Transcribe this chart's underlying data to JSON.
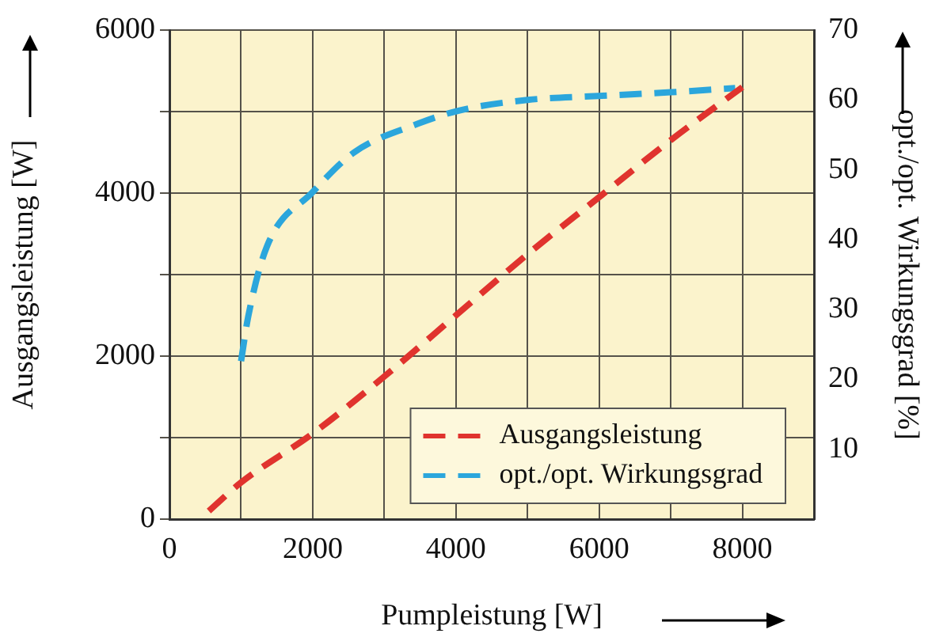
{
  "chart_data": {
    "type": "line",
    "xlabel": "Pumpleistung [W]",
    "ylabel": "Ausgangsleistung [W]",
    "y2label": "opt./opt. Wirkungsgrad [%]",
    "xlim": [
      0,
      9000
    ],
    "xticks": [
      0,
      {
        "value": 1000,
        "label": null
      },
      2000,
      {
        "value": 3000,
        "label": null
      },
      4000,
      {
        "value": 5000,
        "label": null
      },
      6000,
      {
        "value": 7000,
        "label": null
      },
      8000,
      {
        "value": 9000,
        "label": null
      }
    ],
    "ylim": [
      0,
      6000
    ],
    "yticks": [
      0,
      {
        "value": 1000,
        "label": null
      },
      2000,
      {
        "value": 3000,
        "label": null
      },
      4000,
      {
        "value": 5000,
        "label": null
      },
      6000
    ],
    "y2lim": [
      0,
      70
    ],
    "y2ticks": [
      10,
      20,
      30,
      40,
      50,
      60,
      70
    ],
    "grid": true,
    "legend": "bottom right",
    "line_style": "dashed",
    "marker": "none",
    "series": [
      {
        "name": "Ausgangsleistung",
        "color": "#e0332e",
        "x": [
          550,
          1000,
          2000,
          3000,
          4000,
          5000,
          6000,
          7000,
          8000
        ],
        "values": [
          100,
          450,
          1050,
          1750,
          2500,
          3250,
          3950,
          4650,
          5300
        ]
      },
      {
        "name": "opt./opt. Wirkungsgrad",
        "color": "#2ba6dc",
        "axis": "y2",
        "x": [
          1000,
          1100,
          1360,
          2000,
          2580,
          3470,
          4050,
          5000,
          6050,
          7000,
          7900
        ],
        "values": [
          22.6,
          29,
          39,
          46.8,
          52.5,
          56.6,
          58.5,
          60,
          60.6,
          61.1,
          61.7
        ]
      }
    ]
  }
}
